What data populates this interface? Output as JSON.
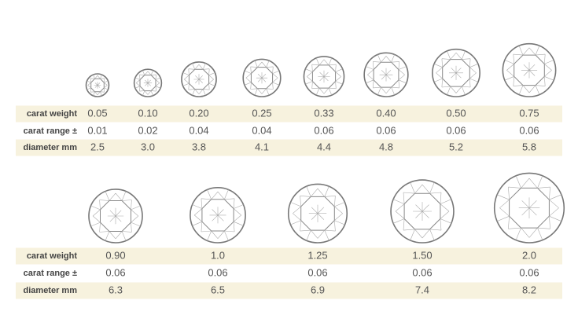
{
  "tables": [
    {
      "rows": [
        {
          "label": "carat weight",
          "values": [
            "0.05",
            "0.10",
            "0.20",
            "0.25",
            "0.33",
            "0.40",
            "0.50",
            "0.75"
          ]
        },
        {
          "label": "carat range ±",
          "values": [
            "0.01",
            "0.02",
            "0.04",
            "0.04",
            "0.06",
            "0.06",
            "0.06",
            "0.06"
          ]
        },
        {
          "label": "diameter  mm",
          "values": [
            "2.5",
            "3.0",
            "3.8",
            "4.1",
            "4.4",
            "4.8",
            "5.2",
            "5.8"
          ]
        }
      ]
    },
    {
      "rows": [
        {
          "label": "carat weight",
          "values": [
            "0.90",
            "1.0",
            "1.25",
            "1.50",
            "2.0"
          ]
        },
        {
          "label": "carat range ±",
          "values": [
            "0.06",
            "0.06",
            "0.06",
            "0.06",
            "0.06"
          ]
        },
        {
          "label": "diameter  mm",
          "values": [
            "6.3",
            "6.5",
            "6.9",
            "7.4",
            "8.2"
          ]
        }
      ]
    }
  ]
}
